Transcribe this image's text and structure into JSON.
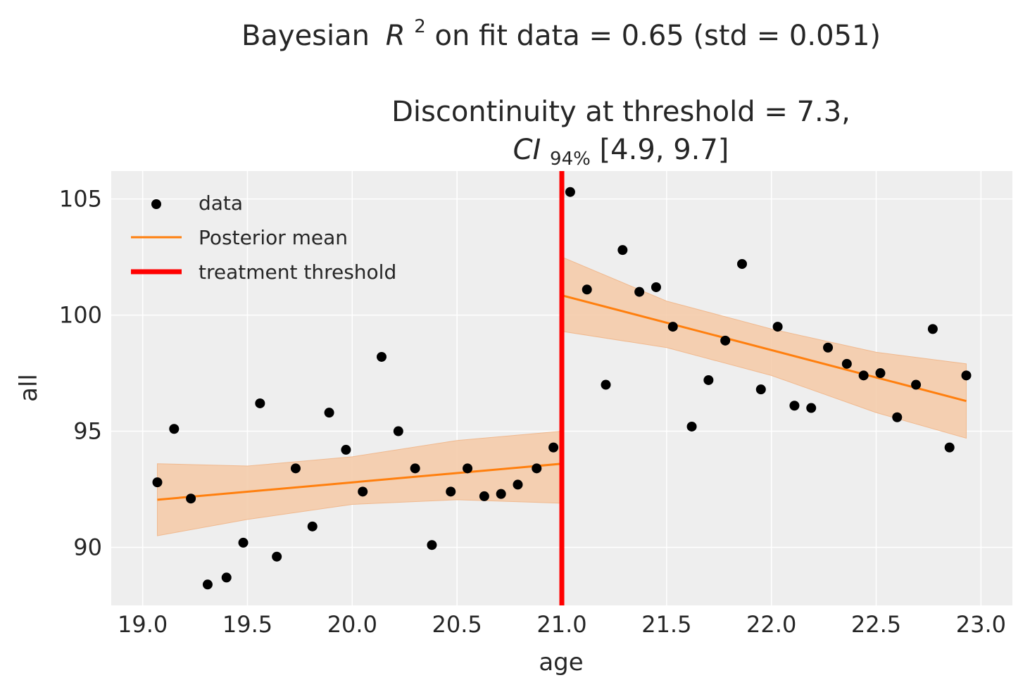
{
  "chart_data": {
    "type": "scatter",
    "title": {
      "main_prefix": "Bayesian",
      "main_r": "R",
      "main_sup": "2",
      "main_suffix": " on fit data = 0.65 (std = 0.051)",
      "sub_line1": "Discontinuity at threshold = 7.3,",
      "sub_ci": "CI",
      "sub_ci_sub": "94%",
      "sub_ci_rest": "[4.9, 9.7]"
    },
    "xlabel": "age",
    "ylabel": "all",
    "xlim": [
      18.85,
      23.15
    ],
    "ylim": [
      87.5,
      106.2
    ],
    "xticks": [
      19.0,
      19.5,
      20.0,
      20.5,
      21.0,
      21.5,
      22.0,
      22.5,
      23.0
    ],
    "xtick_labels": [
      "19.0",
      "19.5",
      "20.0",
      "20.5",
      "21.0",
      "21.5",
      "22.0",
      "22.5",
      "23.0"
    ],
    "yticks": [
      90,
      95,
      100,
      105
    ],
    "ytick_labels": [
      "90",
      "95",
      "100",
      "105"
    ],
    "grid": true,
    "legend_position": "top-left",
    "legend": [
      {
        "label": "data",
        "kind": "marker",
        "color": "#000000"
      },
      {
        "label": "Posterior mean",
        "kind": "line",
        "color": "#ff7f0e"
      },
      {
        "label": "treatment threshold",
        "kind": "thick-line",
        "color": "#ff0000"
      }
    ],
    "threshold": 21.0,
    "colors": {
      "background": "#eeeeee",
      "grid": "#ffffff",
      "data": "#000000",
      "mean": "#ff7f0e",
      "band": "#f5c9a6",
      "threshold": "#ff0000"
    },
    "series": [
      {
        "name": "data",
        "points": [
          [
            19.07,
            92.8
          ],
          [
            19.15,
            95.1
          ],
          [
            19.23,
            92.1
          ],
          [
            19.31,
            88.4
          ],
          [
            19.4,
            88.7
          ],
          [
            19.48,
            90.2
          ],
          [
            19.56,
            96.2
          ],
          [
            19.64,
            89.6
          ],
          [
            19.73,
            93.4
          ],
          [
            19.81,
            90.9
          ],
          [
            19.89,
            95.8
          ],
          [
            19.97,
            94.2
          ],
          [
            20.05,
            92.4
          ],
          [
            20.14,
            98.2
          ],
          [
            20.22,
            95.0
          ],
          [
            20.3,
            93.4
          ],
          [
            20.38,
            90.1
          ],
          [
            20.47,
            92.4
          ],
          [
            20.55,
            93.4
          ],
          [
            20.63,
            92.2
          ],
          [
            20.71,
            92.3
          ],
          [
            20.79,
            92.7
          ],
          [
            20.88,
            93.4
          ],
          [
            20.96,
            94.3
          ],
          [
            21.04,
            105.3
          ],
          [
            21.12,
            101.1
          ],
          [
            21.21,
            97.0
          ],
          [
            21.29,
            102.8
          ],
          [
            21.37,
            101.0
          ],
          [
            21.45,
            101.2
          ],
          [
            21.53,
            99.5
          ],
          [
            21.62,
            95.2
          ],
          [
            21.7,
            97.2
          ],
          [
            21.78,
            98.9
          ],
          [
            21.86,
            102.2
          ],
          [
            21.95,
            96.8
          ],
          [
            22.03,
            99.5
          ],
          [
            22.11,
            96.1
          ],
          [
            22.19,
            96.0
          ],
          [
            22.27,
            98.6
          ],
          [
            22.36,
            97.9
          ],
          [
            22.44,
            97.4
          ],
          [
            22.52,
            97.5
          ],
          [
            22.6,
            95.6
          ],
          [
            22.69,
            97.0
          ],
          [
            22.77,
            99.4
          ],
          [
            22.85,
            94.3
          ],
          [
            22.93,
            97.4
          ]
        ]
      },
      {
        "name": "Posterior mean",
        "segments": [
          [
            [
              19.07,
              92.05
            ],
            [
              21.0,
              93.6
            ]
          ],
          [
            [
              21.0,
              100.85
            ],
            [
              22.93,
              96.3
            ]
          ]
        ]
      },
      {
        "name": "credible interval",
        "bands": [
          {
            "x": [
              19.07,
              19.5,
              20.0,
              20.5,
              21.0
            ],
            "lower": [
              90.5,
              91.2,
              91.85,
              92.05,
              91.9
            ],
            "upper": [
              93.6,
              93.5,
              93.9,
              94.6,
              95.0
            ]
          },
          {
            "x": [
              21.0,
              21.5,
              22.0,
              22.5,
              22.93
            ],
            "lower": [
              99.3,
              98.6,
              97.4,
              95.8,
              94.7
            ],
            "upper": [
              102.5,
              100.6,
              99.4,
              98.4,
              97.9
            ]
          }
        ]
      }
    ]
  }
}
